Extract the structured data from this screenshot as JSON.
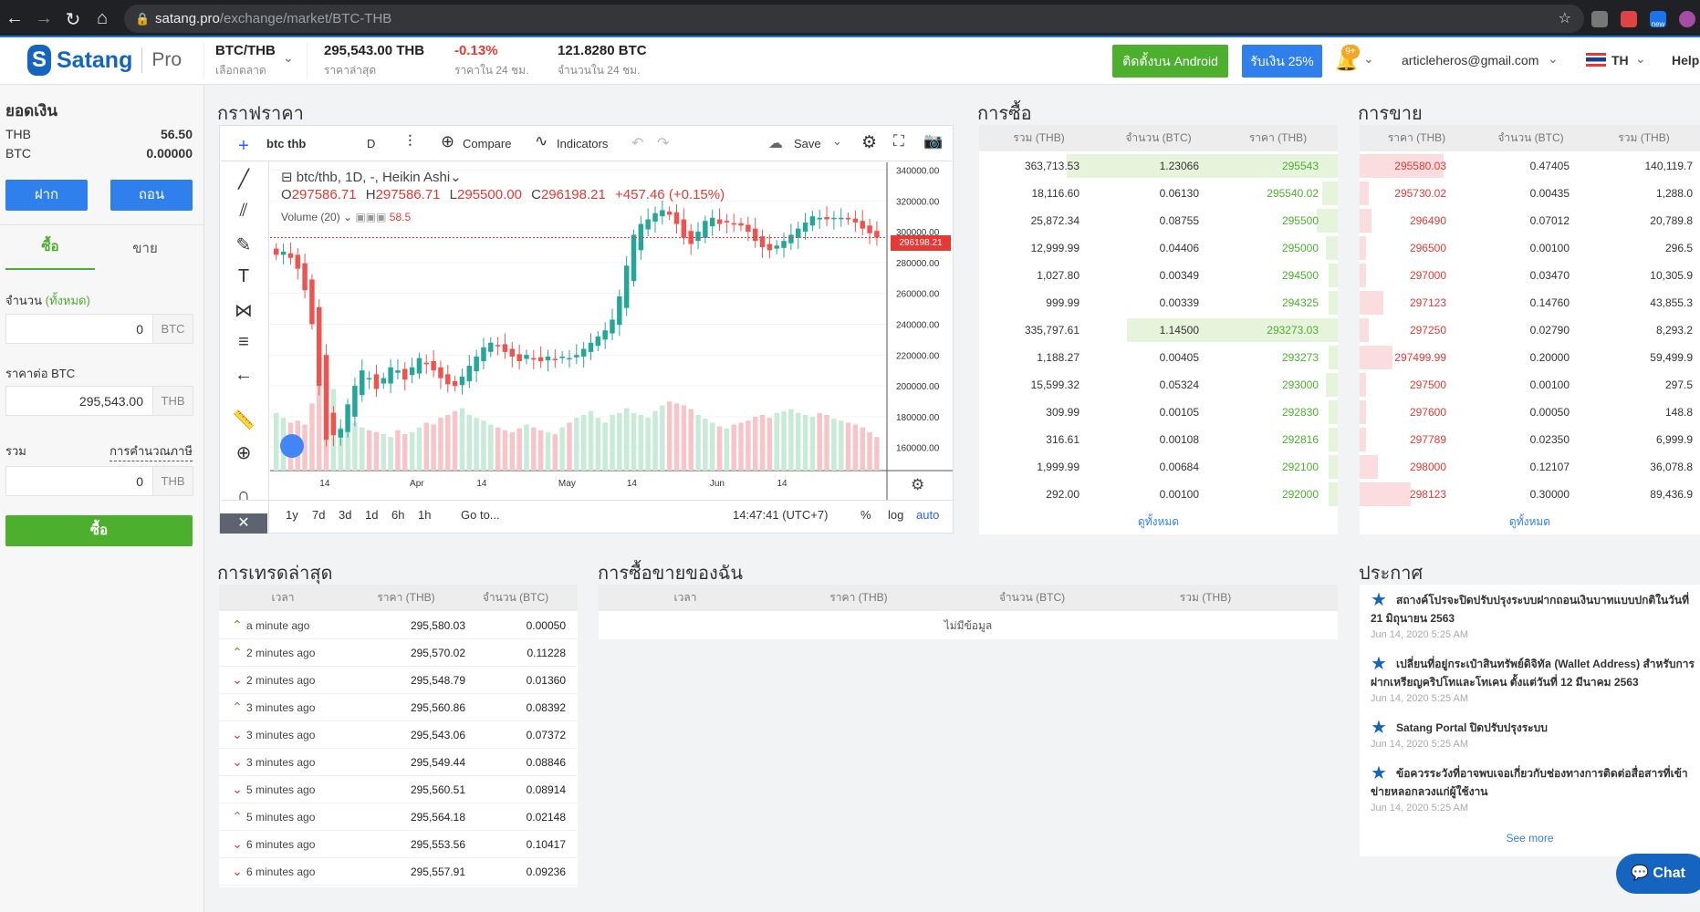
{
  "browser": {
    "host": "satang.pro",
    "path": "/exchange/market/BTC-THB",
    "ext_badge": "new"
  },
  "header": {
    "logo_name": "Satang",
    "logo_pro": "Pro",
    "pair": "BTC/THB",
    "pair_label": "เลือกตลาด",
    "last_price": "295,543.00 THB",
    "last_price_label": "ราคาล่าสุด",
    "change": "-0.13%",
    "change_label": "ราคาใน 24 ชม.",
    "volume": "121.8280 BTC",
    "volume_label": "จำนวนใน 24 ชม.",
    "android_btn": "ติดตั้งบน Android",
    "deposit_btn": "รับเงิน 25%",
    "notif_badge": "9+",
    "email": "articleheros@gmail.com",
    "lang": "TH",
    "help": "Help"
  },
  "balance": {
    "title": "ยอดเงิน",
    "rows": [
      {
        "cur": "THB",
        "amt": "56.50"
      },
      {
        "cur": "BTC",
        "amt": "0.00000"
      }
    ],
    "deposit": "ฝาก",
    "withdraw": "ถอน"
  },
  "order_form": {
    "tab_buy": "ซื้อ",
    "tab_sell": "ขาย",
    "amount_label": "จำนวน",
    "amount_all": "(ทั้งหมด)",
    "amount_value": "0",
    "amount_unit": "BTC",
    "price_label": "ราคาต่อ BTC",
    "price_value": "295,543.00",
    "price_unit": "THB",
    "total_label": "รวม",
    "tax_link": "การคำนวณภาษี",
    "total_value": "0",
    "total_unit": "THB",
    "submit": "ซื้อ"
  },
  "chart_panel": {
    "title": "กราฟราคา",
    "toolbar": {
      "symbol": "btc thb",
      "interval": "D",
      "compare": "Compare",
      "indicators": "Indicators",
      "save": "Save"
    },
    "legend": {
      "symbol_line": "btc/thb, 1D, -, Heikin Ashi",
      "o": "297586.71",
      "h": "297586.71",
      "l": "295500.00",
      "c": "296198.21",
      "chg": "+457.46 (+0.15%)",
      "volume": "Volume (20)",
      "volume_value": "58.5"
    },
    "last_price_tag": "296198.21",
    "ranges": [
      "1y",
      "7d",
      "3d",
      "1d",
      "6h",
      "1h"
    ],
    "goto": "Go to...",
    "time": "14:47:41 (UTC+7)",
    "pct": "%",
    "log": "log",
    "auto": "auto"
  },
  "chart_data": {
    "type": "candlestick",
    "y_ticks": [
      "340000.00",
      "320000.00",
      "300000.00",
      "280000.00",
      "260000.00",
      "240000.00",
      "220000.00",
      "200000.00",
      "180000.00",
      "160000.00"
    ],
    "x_ticks": [
      "14",
      "Apr",
      "14",
      "May",
      "14",
      "Jun",
      "14"
    ],
    "ylim": [
      145000,
      345000
    ],
    "close": [
      285000,
      287000,
      283000,
      276000,
      262000,
      240000,
      200000,
      165000,
      168000,
      172000,
      188000,
      200000,
      210000,
      205000,
      198000,
      205000,
      212000,
      210000,
      204000,
      212000,
      218000,
      214000,
      210000,
      205000,
      201000,
      200000,
      206000,
      213000,
      219000,
      225000,
      228000,
      226000,
      222000,
      219000,
      216000,
      220000,
      217000,
      216000,
      219000,
      217000,
      219000,
      218000,
      220000,
      224000,
      228000,
      232000,
      236000,
      243000,
      258000,
      278000,
      298000,
      305000,
      308000,
      312000,
      314000,
      311000,
      305000,
      296000,
      292000,
      300000,
      307000,
      309000,
      305000,
      306000,
      305000,
      304000,
      300000,
      294000,
      290000,
      288000,
      291000,
      294000,
      298000,
      302000,
      306000,
      310000,
      309000,
      308000,
      309000,
      309000,
      308000,
      306000,
      302000,
      299000,
      296198
    ],
    "volume": [
      60,
      55,
      50,
      52,
      48,
      70,
      90,
      95,
      85,
      45,
      40,
      50,
      45,
      42,
      40,
      38,
      35,
      42,
      38,
      40,
      45,
      50,
      48,
      55,
      58,
      62,
      65,
      58,
      55,
      52,
      48,
      45,
      42,
      40,
      44,
      48,
      45,
      42,
      40,
      38,
      45,
      50,
      55,
      58,
      62,
      55,
      50,
      58,
      60,
      65,
      60,
      58,
      55,
      62,
      68,
      72,
      70,
      68,
      64,
      58,
      54,
      50,
      46,
      44,
      48,
      50,
      52,
      56,
      58,
      55,
      60,
      62,
      64,
      60,
      58,
      56,
      60,
      58,
      54,
      52,
      50,
      48,
      45,
      40,
      35
    ],
    "last": 296198.21
  },
  "bids": {
    "title": "การซื้อ",
    "headers": [
      "รวม (THB)",
      "จำนวน (BTC)",
      "ราคา (THB)"
    ],
    "rows": [
      [
        "363,713.53",
        "1.23066",
        "295543",
        0.9
      ],
      [
        "18,116.60",
        "0.06130",
        "295540.02",
        0.05
      ],
      [
        "25,872.34",
        "0.08755",
        "295500",
        0.07
      ],
      [
        "12,999.99",
        "0.04406",
        "295000",
        0.04
      ],
      [
        "1,027.80",
        "0.00349",
        "294500",
        0.03
      ],
      [
        "999.99",
        "0.00339",
        "294325",
        0.03
      ],
      [
        "335,797.61",
        "1.14500",
        "293273.03",
        0.7
      ],
      [
        "1,188.27",
        "0.00405",
        "293273",
        0.03
      ],
      [
        "15,599.32",
        "0.05324",
        "293000",
        0.04
      ],
      [
        "309.99",
        "0.00105",
        "292830",
        0.03
      ],
      [
        "316.61",
        "0.00108",
        "292816",
        0.03
      ],
      [
        "1,999.99",
        "0.00684",
        "292100",
        0.03
      ],
      [
        "292.00",
        "0.00100",
        "292000",
        0.03
      ]
    ],
    "more": "ดูทั้งหมด"
  },
  "asks": {
    "title": "การขาย",
    "headers": [
      "ราคา (THB)",
      "จำนวน (BTC)",
      "รวม (THB)"
    ],
    "rows": [
      [
        "295580.03",
        "0.47405",
        "140,119.7",
        0.28
      ],
      [
        "295730.02",
        "0.00435",
        "1,288.0",
        0.03
      ],
      [
        "296490",
        "0.07012",
        "20,789.8",
        0.04
      ],
      [
        "296500",
        "0.00100",
        "296.5",
        0.02
      ],
      [
        "297000",
        "0.03470",
        "10,305.9",
        0.02
      ],
      [
        "297123",
        "0.14760",
        "43,855.3",
        0.08
      ],
      [
        "297250",
        "0.02790",
        "8,293.2",
        0.03
      ],
      [
        "297499.99",
        "0.20000",
        "59,499.9",
        0.11
      ],
      [
        "297500",
        "0.00100",
        "297.5",
        0.02
      ],
      [
        "297600",
        "0.00050",
        "148.8",
        0.02
      ],
      [
        "297789",
        "0.02350",
        "6,999.9",
        0.02
      ],
      [
        "298000",
        "0.12107",
        "36,078.8",
        0.06
      ],
      [
        "298123",
        "0.30000",
        "89,436.9",
        0.17
      ]
    ],
    "more": "ดูทั้งหมด"
  },
  "trades": {
    "title": "การเทรดล่าสุด",
    "headers": [
      "เวลา",
      "ราคา (THB)",
      "จำนวน (BTC)"
    ],
    "rows": [
      [
        "up",
        "a minute ago",
        "295,580.03",
        "0.00050"
      ],
      [
        "up",
        "2 minutes ago",
        "295,570.02",
        "0.11228"
      ],
      [
        "down",
        "2 minutes ago",
        "295,548.79",
        "0.01360"
      ],
      [
        "up",
        "3 minutes ago",
        "295,560.86",
        "0.08392"
      ],
      [
        "down",
        "3 minutes ago",
        "295,543.06",
        "0.07372"
      ],
      [
        "down",
        "3 minutes ago",
        "295,549.44",
        "0.08846"
      ],
      [
        "down",
        "5 minutes ago",
        "295,560.51",
        "0.08914"
      ],
      [
        "up",
        "5 minutes ago",
        "295,564.18",
        "0.02148"
      ],
      [
        "down",
        "6 minutes ago",
        "295,553.56",
        "0.10417"
      ],
      [
        "down",
        "6 minutes ago",
        "295,557.91",
        "0.09236"
      ]
    ]
  },
  "my_orders": {
    "title": "การซื้อขายของฉัน",
    "headers": [
      "เวลา",
      "ราคา (THB)",
      "จำนวน (BTC)",
      "รวม (THB)"
    ],
    "empty": "ไม่มีข้อมูล"
  },
  "announcements": {
    "title": "ประกาศ",
    "items": [
      {
        "text": "สถางค์โปรจะปิดปรับปรุงระบบฝากถอนเงินบาทแบบปกติในวันที่ 21 มิถุนายน 2563",
        "date": "Jun 14, 2020 5:25 AM"
      },
      {
        "text": "เปลี่ยนที่อยู่กระเป๋าสินทรัพย์ดิจิทัล (Wallet Address) สำหรับการฝากเหรียญคริปโทและโทเคน ตั้งแต่วันที่ 12 มีนาคม 2563",
        "date": "Jun 14, 2020 5:25 AM"
      },
      {
        "text": "Satang Portal ปิดปรับปรุงระบบ",
        "date": "Jun 14, 2020 5:25 AM"
      },
      {
        "text": "ข้อควรระวังที่อาจพบเจอเกี่ยวกับช่องทางการติดต่อสื่อสารที่เข้าข่ายหลอกลวงแก่ผู้ใช้งาน",
        "date": "Jun 14, 2020 5:25 AM"
      }
    ],
    "more": "See more"
  },
  "chat": "Chat",
  "colors": {
    "green": "#4caf2d",
    "red": "#e53935",
    "blue": "#1565c0",
    "up_candle": "#26a69a",
    "down_candle": "#ef5350"
  }
}
